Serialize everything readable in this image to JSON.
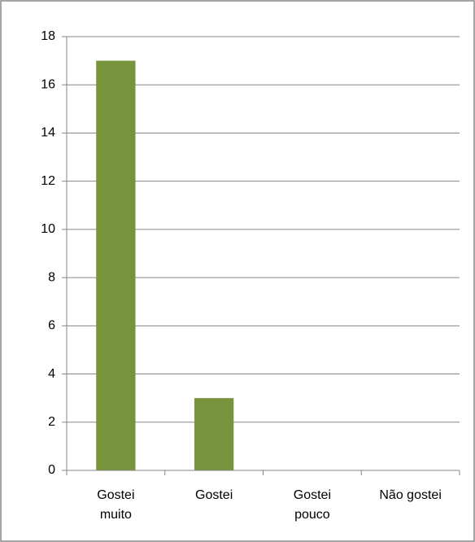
{
  "chart_data": {
    "type": "bar",
    "categories": [
      "Gostei muito",
      "Gostei",
      "Gostei pouco",
      "Não gostei"
    ],
    "values": [
      17,
      3,
      0,
      0
    ],
    "color": "#77933c",
    "ylim": [
      0,
      18
    ],
    "yticks": [
      0,
      2,
      4,
      6,
      8,
      10,
      12,
      14,
      16,
      18
    ],
    "grid": true
  }
}
